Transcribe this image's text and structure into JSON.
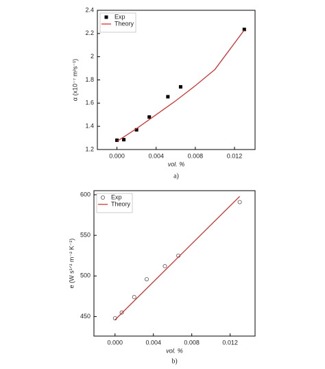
{
  "chart_data": [
    {
      "type": "scatter",
      "caption": "a)",
      "x_label": "vol. %",
      "y_label": "α (x10⁻⁷ m²s⁻¹)",
      "xlim": [
        -0.002,
        0.0141
      ],
      "ylim": [
        1.2,
        2.4
      ],
      "xticks": [
        {
          "value": 0,
          "label": "0.000"
        },
        {
          "value": 0.004,
          "label": "0.004"
        },
        {
          "value": 0.008,
          "label": "0.008"
        },
        {
          "value": 0.012,
          "label": "0.012"
        }
      ],
      "yticks": [
        1.2,
        1.4,
        1.6,
        1.8,
        2,
        2.2,
        2.4
      ],
      "legend": "top-left",
      "series": [
        {
          "name": "Exp",
          "marker": "square",
          "color": "#000000",
          "x": [
            0,
            0.0007,
            0.002,
            0.0033,
            0.0052,
            0.0065,
            0.013
          ],
          "values": [
            1.28,
            1.285,
            1.37,
            1.48,
            1.655,
            1.74,
            2.235
          ]
        },
        {
          "name": "Theory",
          "marker": "line",
          "color": "#d42020",
          "x": [
            0,
            0.002,
            0.004,
            0.006,
            0.008,
            0.01,
            0.013
          ],
          "values": [
            1.27,
            1.38,
            1.5,
            1.62,
            1.75,
            1.89,
            2.23
          ]
        }
      ]
    },
    {
      "type": "scatter",
      "caption": "b)",
      "x_label": "vol. %",
      "y_label": "e (W s¹ᐟ² m⁻² K⁻¹)",
      "xlim": [
        -0.0022,
        0.0146
      ],
      "ylim": [
        426,
        605
      ],
      "xticks": [
        {
          "value": 0,
          "label": "0.000"
        },
        {
          "value": 0.004,
          "label": "0.004"
        },
        {
          "value": 0.008,
          "label": "0.008"
        },
        {
          "value": 0.012,
          "label": "0.012"
        }
      ],
      "yticks": [
        450,
        500,
        550,
        600
      ],
      "legend": "top-left",
      "series": [
        {
          "name": "Exp",
          "marker": "circle",
          "color": "#555555",
          "x": [
            0,
            0.0007,
            0.002,
            0.0033,
            0.0052,
            0.0066,
            0.013
          ],
          "values": [
            448,
            455,
            474,
            496,
            512,
            525,
            591
          ]
        },
        {
          "name": "Theory",
          "marker": "line",
          "color": "#d42020",
          "x": [
            0,
            0.013
          ],
          "values": [
            446,
            598
          ]
        }
      ]
    }
  ]
}
